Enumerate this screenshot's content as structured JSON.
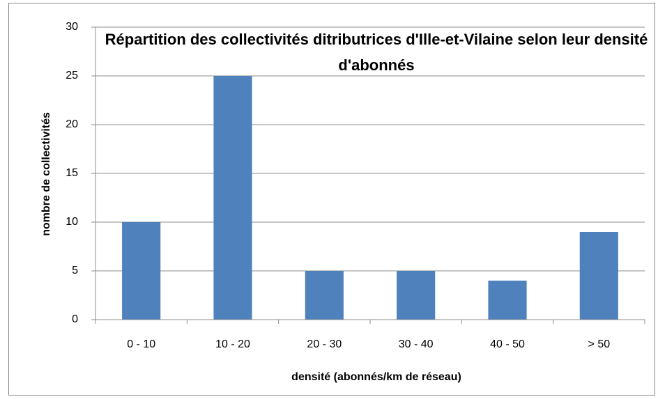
{
  "chart_data": {
    "type": "bar",
    "title": "Répartition des collectivités ditributrices d'Ille-et-Vilaine selon leur densité d'abonnés",
    "x_label": "densité (abonnés/km de réseau)",
    "y_label": "nombre de collectivités",
    "categories": [
      "0 - 10",
      "10 - 20",
      "20 - 30",
      "30 - 40",
      "40 - 50",
      "> 50"
    ],
    "values": [
      10,
      25,
      5,
      5,
      4,
      9
    ],
    "color": "#4f81bd",
    "ylim": [
      0,
      30
    ],
    "yticks": [
      0,
      5,
      10,
      15,
      20,
      25,
      30
    ],
    "grid": true
  }
}
